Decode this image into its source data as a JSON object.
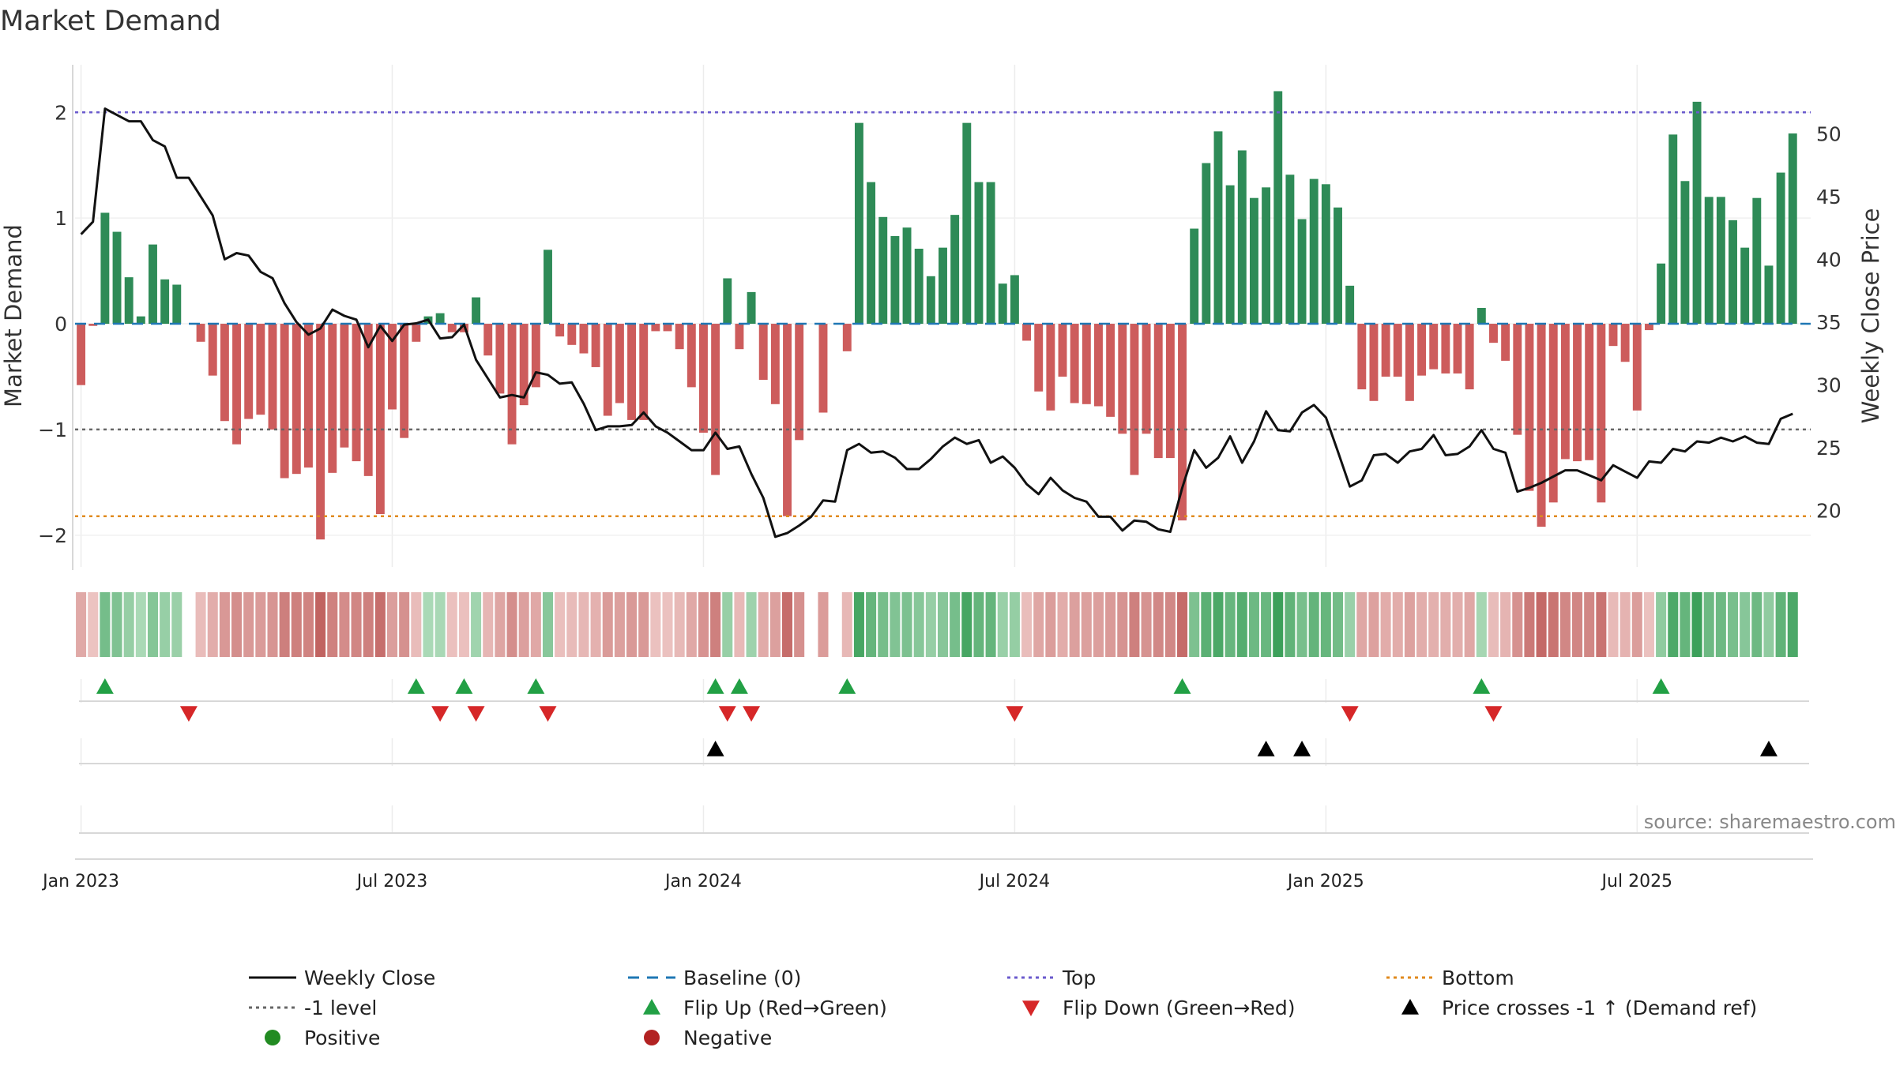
{
  "chart_data": {
    "type": "bar",
    "title": "Market Demand",
    "ylabel_left": "Market Demand",
    "ylabel_right": "Weekly Close Price",
    "ylim_left": [
      -2.3,
      2.45
    ],
    "ylim_right": [
      15.5,
      55.5
    ],
    "yticks_left": [
      {
        "v": 2,
        "label": "2"
      },
      {
        "v": 1,
        "label": "1"
      },
      {
        "v": 0,
        "label": "0"
      },
      {
        "v": -1,
        "label": "−1"
      },
      {
        "v": -2,
        "label": "−2"
      }
    ],
    "yticks_right": [
      {
        "v": 50,
        "label": "50"
      },
      {
        "v": 45,
        "label": "45"
      },
      {
        "v": 40,
        "label": "40"
      },
      {
        "v": 35,
        "label": "35"
      },
      {
        "v": 30,
        "label": "30"
      },
      {
        "v": 25,
        "label": "25"
      },
      {
        "v": 20,
        "label": "20"
      }
    ],
    "x_ticks": [
      {
        "week": 1,
        "label": "Jan 2023"
      },
      {
        "week": 27,
        "label": "Jul 2023"
      },
      {
        "week": 53,
        "label": "Jan 2024"
      },
      {
        "week": 79,
        "label": "Jul 2024"
      },
      {
        "week": 105,
        "label": "Jan 2025"
      },
      {
        "week": 131,
        "label": "Jul 2025"
      }
    ],
    "weeks_total": 145,
    "reference_lines": {
      "top": 2.0,
      "bottom": -1.82,
      "minus_one": -1.0,
      "baseline": 0
    },
    "demand": [
      -0.58,
      -0.02,
      1.05,
      0.87,
      0.44,
      0.07,
      0.75,
      0.42,
      0.37,
      0.0,
      -0.17,
      -0.49,
      -0.92,
      -1.14,
      -0.9,
      -0.86,
      -1.0,
      -1.46,
      -1.42,
      -1.36,
      -2.04,
      -1.41,
      -1.17,
      -1.3,
      -1.44,
      -1.8,
      -0.81,
      -1.08,
      -0.17,
      0.07,
      0.1,
      -0.08,
      -0.08,
      0.25,
      -0.3,
      -0.66,
      -1.14,
      -0.77,
      -0.6,
      0.7,
      -0.12,
      -0.2,
      -0.28,
      -0.41,
      -0.87,
      -0.75,
      -0.91,
      -0.91,
      -0.07,
      -0.07,
      -0.24,
      -0.6,
      -1.03,
      -1.43,
      0.43,
      -0.24,
      0.3,
      -0.53,
      -0.76,
      -1.82,
      -1.1,
      0.0,
      -0.84,
      0.0,
      -0.26,
      1.9,
      1.34,
      1.01,
      0.83,
      0.91,
      0.71,
      0.45,
      0.72,
      1.03,
      1.9,
      1.34,
      1.34,
      0.38,
      0.46,
      -0.16,
      -0.64,
      -0.82,
      -0.5,
      -0.75,
      -0.76,
      -0.78,
      -0.88,
      -1.04,
      -1.43,
      -1.04,
      -1.27,
      -1.27,
      -1.86,
      0.9,
      1.52,
      1.82,
      1.31,
      1.64,
      1.19,
      1.29,
      2.2,
      1.41,
      0.99,
      1.37,
      1.32,
      1.1,
      0.36,
      -0.62,
      -0.73,
      -0.5,
      -0.5,
      -0.73,
      -0.49,
      -0.43,
      -0.47,
      -0.47,
      -0.62,
      0.15,
      -0.18,
      -0.35,
      -1.05,
      -1.58,
      -1.92,
      -1.69,
      -1.28,
      -1.3,
      -1.29,
      -1.69,
      -0.21,
      -0.36,
      -0.82,
      -0.06,
      0.57,
      1.79,
      1.35,
      2.1,
      1.2,
      1.2,
      0.98,
      0.72,
      1.19,
      0.55,
      1.43,
      1.8
    ],
    "close": [
      42,
      43,
      52,
      51.5,
      51,
      51,
      49.5,
      49,
      46.5,
      46.5,
      45,
      43.5,
      40,
      40.5,
      40.3,
      39,
      38.5,
      36.5,
      35,
      34,
      34.5,
      36,
      35.5,
      35.2,
      33,
      34.7,
      33.5,
      34.8,
      34.9,
      35.2,
      33.7,
      33.8,
      34.8,
      32,
      30.5,
      29,
      29.2,
      29,
      31,
      30.8,
      30.1,
      30.2,
      28.5,
      26.4,
      26.7,
      26.7,
      26.8,
      27.8,
      26.7,
      26.2,
      25.5,
      24.8,
      24.8,
      26.2,
      24.9,
      25.1,
      22.9,
      21,
      17.9,
      18.2,
      18.8,
      19.5,
      20.8,
      20.7,
      24.8,
      25.3,
      24.6,
      24.7,
      24.2,
      23.3,
      23.3,
      24.1,
      25.1,
      25.8,
      25.3,
      25.6,
      23.8,
      24.3,
      23.4,
      22.1,
      21.3,
      22.6,
      21.6,
      21,
      20.7,
      19.5,
      19.5,
      18.4,
      19.2,
      19.1,
      18.5,
      18.3,
      21.8,
      24.8,
      23.4,
      24.2,
      25.9,
      23.8,
      25.5,
      27.9,
      26.4,
      26.3,
      27.8,
      28.4,
      27.4,
      24.7,
      21.9,
      22.4,
      24.4,
      24.5,
      23.8,
      24.7,
      24.9,
      26,
      24.4,
      24.5,
      25.1,
      26.4,
      24.9,
      24.6,
      21.5,
      21.8,
      22.2,
      22.7,
      23.2,
      23.2,
      22.8,
      22.4,
      23.6,
      23.1,
      22.6,
      23.9,
      23.8,
      24.9,
      24.7,
      25.5,
      25.4,
      25.8,
      25.5,
      25.9,
      25.4,
      25.3,
      27.3,
      27.7
    ],
    "flip_up_weeks": [
      3,
      29,
      33,
      39,
      54,
      56,
      65,
      93,
      118,
      133
    ],
    "flip_down_weeks": [
      10,
      31,
      34,
      40,
      55,
      57,
      79,
      107,
      119
    ],
    "price_cross_weeks": [
      54,
      100,
      103,
      142
    ],
    "legend": [
      {
        "key": "close",
        "label": "Weekly Close"
      },
      {
        "key": "baseline",
        "label": "Baseline (0)"
      },
      {
        "key": "top",
        "label": "Top"
      },
      {
        "key": "bottom",
        "label": "Bottom"
      },
      {
        "key": "minus1",
        "label": "-1 level"
      },
      {
        "key": "flipup",
        "label": "Flip Up (Red→Green)"
      },
      {
        "key": "flipdown",
        "label": "Flip Down (Green→Red)"
      },
      {
        "key": "cross",
        "label": "Price crosses -1 ↑ (Demand ref)"
      },
      {
        "key": "pos",
        "label": "Positive"
      },
      {
        "key": "neg",
        "label": "Negative"
      }
    ],
    "source": "source: sharemaestro.com"
  },
  "colors": {
    "positive_bar": "#2e8b57",
    "negative_bar": "#cd5c5c",
    "close_line": "#111111",
    "baseline": "#1f77b4",
    "top": "#6a5acd",
    "bottom": "#e08a1e",
    "minus_one": "#666666",
    "flip_up": "#22a045",
    "flip_down": "#d62728",
    "cross": "#000000",
    "positive_dot": "#228b22",
    "negative_dot": "#b22222"
  }
}
